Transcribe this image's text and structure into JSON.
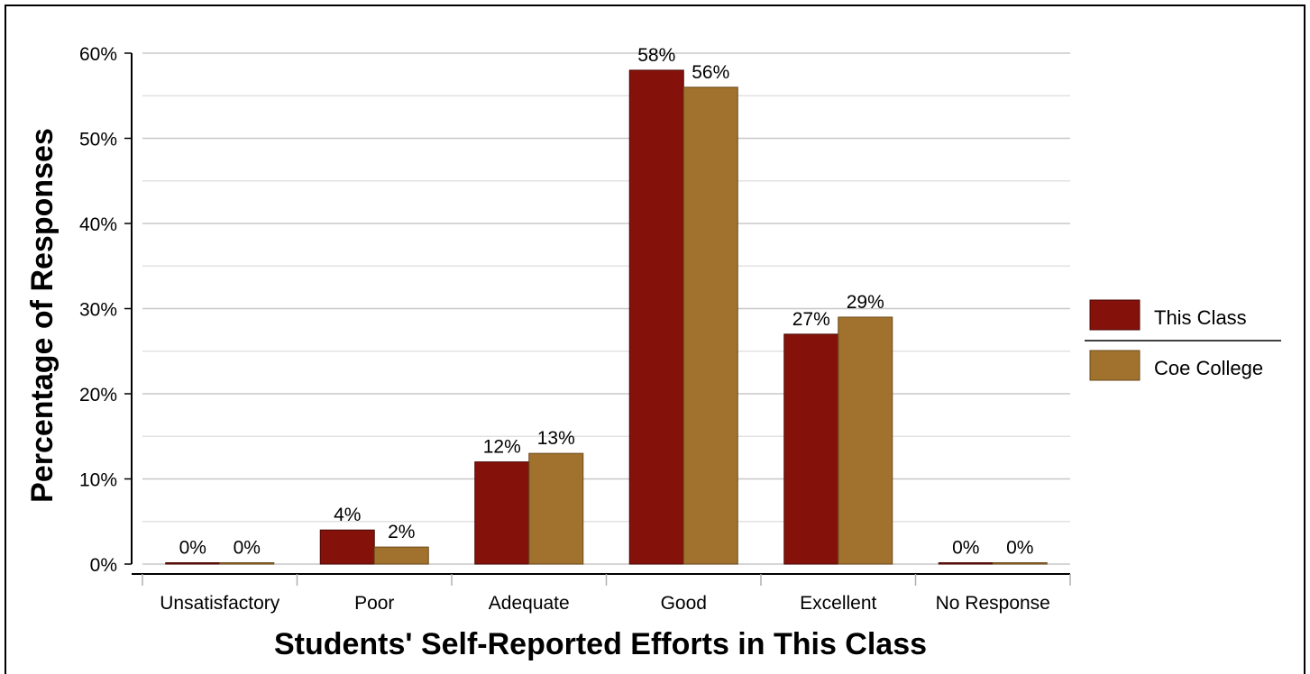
{
  "chart_data": {
    "type": "bar",
    "title": "",
    "xlabel": "Students' Self-Reported Efforts in This Class",
    "ylabel": "Percentage of Responses",
    "categories": [
      "Unsatisfactory",
      "Poor",
      "Adequate",
      "Good",
      "Excellent",
      "No Response"
    ],
    "series": [
      {
        "name": "This Class",
        "color": "#85120a",
        "values": [
          0,
          4,
          12,
          58,
          27,
          0
        ],
        "labels": [
          "0%",
          "4%",
          "12%",
          "58%",
          "27%",
          "0%"
        ]
      },
      {
        "name": "Coe College",
        "color": "#a0722e",
        "values": [
          0,
          2,
          13,
          56,
          29,
          0
        ],
        "labels": [
          "0%",
          "2%",
          "13%",
          "56%",
          "29%",
          "0%"
        ]
      }
    ],
    "ylim": [
      0,
      60
    ],
    "yticks": [
      0,
      10,
      20,
      30,
      40,
      50,
      60
    ],
    "ytick_labels": [
      "0%",
      "10%",
      "20%",
      "30%",
      "40%",
      "50%",
      "60%"
    ],
    "grid": true,
    "legend_position": "right"
  }
}
